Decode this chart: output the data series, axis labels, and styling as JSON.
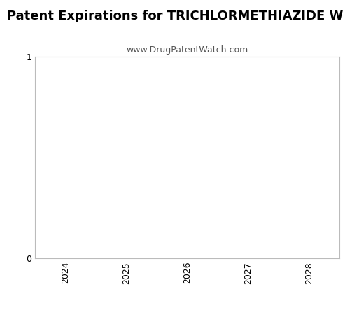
{
  "title": "Patent Expirations for TRICHLORMETHIAZIDE W",
  "subtitle": "www.DrugPatentWatch.com",
  "xlabel": "",
  "ylabel": "",
  "xlim": [
    2023.5,
    2028.5
  ],
  "ylim": [
    0,
    1
  ],
  "xticks": [
    2024,
    2025,
    2026,
    2027,
    2028
  ],
  "yticks": [
    0,
    1
  ],
  "ytick_labels": [
    "0",
    "1"
  ],
  "background_color": "#ffffff",
  "plot_bg_color": "#ffffff",
  "title_fontsize": 13,
  "subtitle_fontsize": 9,
  "tick_fontsize": 9,
  "title_fontweight": "bold",
  "border_color": "#bbbbbb"
}
